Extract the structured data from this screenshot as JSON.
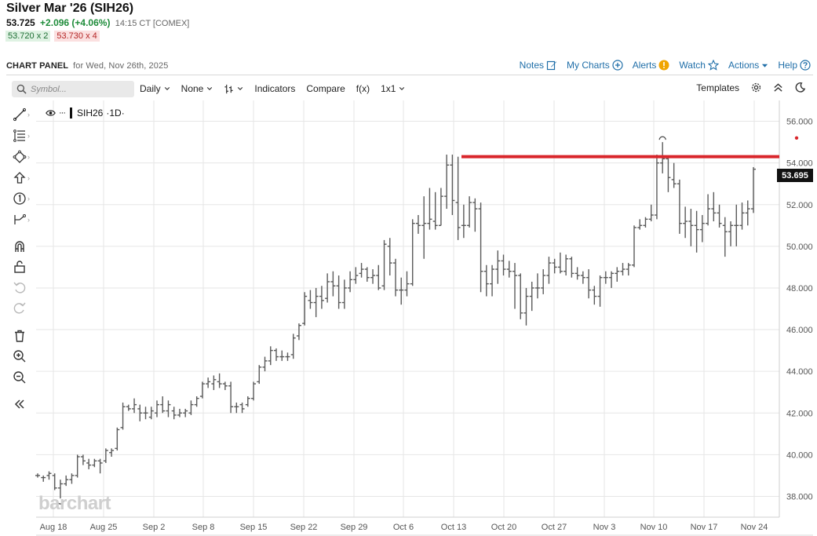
{
  "quote": {
    "title": "Silver Mar '26 (SIH26)",
    "last": "53.725",
    "change": "+2.096 (+4.06%)",
    "time": "14:15 CT [COMEX]",
    "bid": "53.720 x 2",
    "ask": "53.730 x 4"
  },
  "panel": {
    "title": "CHART PANEL",
    "date": "for Wed, Nov 26th, 2025",
    "menu": {
      "notes": "Notes",
      "my_charts": "My Charts",
      "alerts": "Alerts",
      "watch": "Watch",
      "actions": "Actions",
      "help": "Help"
    }
  },
  "toolbar": {
    "search_placeholder": "Symbol...",
    "interval": "Daily",
    "overlay": "None",
    "bar_type_icon": "bar-type-icon",
    "indicators": "Indicators",
    "compare": "Compare",
    "fx": "f(x)",
    "layout": "1x1",
    "templates": "Templates"
  },
  "legend": {
    "symbol": "SIH26",
    "interval": "·1D·"
  },
  "watermark": "barchart",
  "last_price_tag": "53.695",
  "colors": {
    "accent_link": "#1f6ea8",
    "up": "#1e8c3a",
    "down": "#b42525",
    "resistance_line": "#d9262b",
    "bars": "#5a5a5a"
  },
  "chart_data": {
    "type": "ohlc",
    "symbol": "SIH26",
    "ylim": [
      37,
      57
    ],
    "yticks": [
      "38.000",
      "40.000",
      "42.000",
      "44.000",
      "46.000",
      "48.000",
      "50.000",
      "52.000",
      "54.000",
      "56.000"
    ],
    "xticks": [
      "Aug 18",
      "Aug 25",
      "Sep 2",
      "Sep 8",
      "Sep 15",
      "Sep 22",
      "Sep 29",
      "Oct 6",
      "Oct 13",
      "Oct 20",
      "Oct 27",
      "Nov 3",
      "Nov 10",
      "Nov 17",
      "Nov 24"
    ],
    "resistance_line": 54.3,
    "last_price": 53.695,
    "grid": true,
    "bars": [
      {
        "o": 39.0,
        "h": 39.1,
        "l": 38.9,
        "c": 39.0
      },
      {
        "o": 38.9,
        "h": 39.0,
        "l": 38.7,
        "c": 38.9
      },
      {
        "o": 39.0,
        "h": 39.2,
        "l": 38.8,
        "c": 39.1
      },
      {
        "o": 39.0,
        "h": 39.1,
        "l": 38.3,
        "c": 38.4
      },
      {
        "o": 38.4,
        "h": 38.8,
        "l": 37.9,
        "c": 38.6
      },
      {
        "o": 38.6,
        "h": 39.0,
        "l": 38.5,
        "c": 38.8
      },
      {
        "o": 38.8,
        "h": 39.1,
        "l": 38.6,
        "c": 39.0
      },
      {
        "o": 39.0,
        "h": 40.0,
        "l": 38.9,
        "c": 39.9
      },
      {
        "o": 39.9,
        "h": 40.0,
        "l": 39.5,
        "c": 39.7
      },
      {
        "o": 39.6,
        "h": 39.8,
        "l": 39.3,
        "c": 39.5
      },
      {
        "o": 39.5,
        "h": 39.8,
        "l": 39.4,
        "c": 39.7
      },
      {
        "o": 39.7,
        "h": 39.8,
        "l": 39.1,
        "c": 39.6
      },
      {
        "o": 39.7,
        "h": 40.3,
        "l": 39.6,
        "c": 40.2
      },
      {
        "o": 40.1,
        "h": 40.3,
        "l": 39.9,
        "c": 40.2
      },
      {
        "o": 40.3,
        "h": 41.3,
        "l": 40.2,
        "c": 41.2
      },
      {
        "o": 41.3,
        "h": 42.5,
        "l": 41.2,
        "c": 42.3
      },
      {
        "o": 42.3,
        "h": 42.4,
        "l": 42.1,
        "c": 42.2
      },
      {
        "o": 42.2,
        "h": 42.7,
        "l": 42.0,
        "c": 42.4
      },
      {
        "o": 42.2,
        "h": 42.4,
        "l": 41.6,
        "c": 42.0
      },
      {
        "o": 42.0,
        "h": 42.3,
        "l": 41.7,
        "c": 42.0
      },
      {
        "o": 41.8,
        "h": 42.3,
        "l": 41.7,
        "c": 42.1
      },
      {
        "o": 42.0,
        "h": 42.6,
        "l": 41.8,
        "c": 42.4
      },
      {
        "o": 42.4,
        "h": 42.8,
        "l": 42.0,
        "c": 42.1
      },
      {
        "o": 42.1,
        "h": 42.6,
        "l": 41.8,
        "c": 42.4
      },
      {
        "o": 42.1,
        "h": 42.3,
        "l": 41.7,
        "c": 41.9
      },
      {
        "o": 41.9,
        "h": 42.2,
        "l": 41.8,
        "c": 42.0
      },
      {
        "o": 42.0,
        "h": 42.2,
        "l": 41.8,
        "c": 42.1
      },
      {
        "o": 42.0,
        "h": 42.6,
        "l": 41.9,
        "c": 42.4
      },
      {
        "o": 42.4,
        "h": 42.8,
        "l": 42.3,
        "c": 42.7
      },
      {
        "o": 42.8,
        "h": 43.5,
        "l": 42.7,
        "c": 43.4
      },
      {
        "o": 43.4,
        "h": 43.7,
        "l": 43.2,
        "c": 43.5
      },
      {
        "o": 43.4,
        "h": 43.8,
        "l": 43.1,
        "c": 43.6
      },
      {
        "o": 43.5,
        "h": 43.9,
        "l": 43.2,
        "c": 43.4
      },
      {
        "o": 43.4,
        "h": 43.5,
        "l": 43.1,
        "c": 43.3
      },
      {
        "o": 43.3,
        "h": 43.5,
        "l": 42.0,
        "c": 42.3
      },
      {
        "o": 42.3,
        "h": 42.5,
        "l": 42.0,
        "c": 42.3
      },
      {
        "o": 42.4,
        "h": 42.5,
        "l": 42.0,
        "c": 42.2
      },
      {
        "o": 42.4,
        "h": 42.8,
        "l": 42.3,
        "c": 42.7
      },
      {
        "o": 42.7,
        "h": 43.5,
        "l": 42.6,
        "c": 43.4
      },
      {
        "o": 43.5,
        "h": 44.3,
        "l": 43.4,
        "c": 44.2
      },
      {
        "o": 44.2,
        "h": 44.7,
        "l": 44.0,
        "c": 44.5
      },
      {
        "o": 44.5,
        "h": 45.2,
        "l": 44.3,
        "c": 45.0
      },
      {
        "o": 45.0,
        "h": 45.1,
        "l": 44.5,
        "c": 44.7
      },
      {
        "o": 44.7,
        "h": 45.0,
        "l": 44.5,
        "c": 44.7
      },
      {
        "o": 44.7,
        "h": 44.9,
        "l": 44.5,
        "c": 44.7
      },
      {
        "o": 44.8,
        "h": 45.8,
        "l": 44.6,
        "c": 45.6
      },
      {
        "o": 45.7,
        "h": 46.3,
        "l": 45.5,
        "c": 46.2
      },
      {
        "o": 46.3,
        "h": 47.8,
        "l": 46.2,
        "c": 47.6
      },
      {
        "o": 47.4,
        "h": 47.9,
        "l": 47.0,
        "c": 47.3
      },
      {
        "o": 47.3,
        "h": 48.0,
        "l": 46.6,
        "c": 47.6
      },
      {
        "o": 47.6,
        "h": 48.1,
        "l": 47.0,
        "c": 47.4
      },
      {
        "o": 47.5,
        "h": 48.7,
        "l": 47.3,
        "c": 48.3
      },
      {
        "o": 48.3,
        "h": 48.8,
        "l": 47.6,
        "c": 48.1
      },
      {
        "o": 48.1,
        "h": 48.6,
        "l": 47.0,
        "c": 47.3
      },
      {
        "o": 47.3,
        "h": 48.4,
        "l": 47.0,
        "c": 48.0
      },
      {
        "o": 48.0,
        "h": 48.8,
        "l": 47.8,
        "c": 48.4
      },
      {
        "o": 48.4,
        "h": 49.0,
        "l": 48.2,
        "c": 48.6
      },
      {
        "o": 48.7,
        "h": 49.2,
        "l": 48.5,
        "c": 48.9
      },
      {
        "o": 48.9,
        "h": 49.0,
        "l": 48.3,
        "c": 48.5
      },
      {
        "o": 48.5,
        "h": 48.9,
        "l": 48.2,
        "c": 48.6
      },
      {
        "o": 48.6,
        "h": 49.1,
        "l": 47.9,
        "c": 48.0
      },
      {
        "o": 48.1,
        "h": 50.3,
        "l": 47.9,
        "c": 50.1
      },
      {
        "o": 50.0,
        "h": 50.4,
        "l": 48.6,
        "c": 49.2
      },
      {
        "o": 49.2,
        "h": 49.4,
        "l": 47.6,
        "c": 47.9
      },
      {
        "o": 47.9,
        "h": 48.5,
        "l": 47.2,
        "c": 47.9
      },
      {
        "o": 47.9,
        "h": 48.8,
        "l": 47.6,
        "c": 48.2
      },
      {
        "o": 48.2,
        "h": 51.3,
        "l": 48.1,
        "c": 51.1
      },
      {
        "o": 51.1,
        "h": 51.5,
        "l": 50.6,
        "c": 51.0
      },
      {
        "o": 51.0,
        "h": 52.4,
        "l": 49.4,
        "c": 51.1
      },
      {
        "o": 51.1,
        "h": 52.8,
        "l": 50.8,
        "c": 51.3
      },
      {
        "o": 51.2,
        "h": 52.6,
        "l": 50.8,
        "c": 51.0
      },
      {
        "o": 51.0,
        "h": 52.8,
        "l": 51.0,
        "c": 52.4
      },
      {
        "o": 52.4,
        "h": 54.4,
        "l": 51.8,
        "c": 53.9
      },
      {
        "o": 53.9,
        "h": 54.4,
        "l": 51.5,
        "c": 52.2
      },
      {
        "o": 52.1,
        "h": 54.3,
        "l": 50.3,
        "c": 50.9
      },
      {
        "o": 51.0,
        "h": 52.0,
        "l": 50.4,
        "c": 51.0
      },
      {
        "o": 51.0,
        "h": 52.4,
        "l": 50.9,
        "c": 52.1
      },
      {
        "o": 52.1,
        "h": 52.3,
        "l": 50.7,
        "c": 51.8
      },
      {
        "o": 51.8,
        "h": 52.1,
        "l": 47.8,
        "c": 48.8
      },
      {
        "o": 48.8,
        "h": 49.1,
        "l": 47.6,
        "c": 48.2
      },
      {
        "o": 48.2,
        "h": 49.1,
        "l": 47.6,
        "c": 48.9
      },
      {
        "o": 48.9,
        "h": 49.8,
        "l": 48.2,
        "c": 49.3
      },
      {
        "o": 49.3,
        "h": 49.6,
        "l": 48.6,
        "c": 48.9
      },
      {
        "o": 48.9,
        "h": 49.3,
        "l": 48.5,
        "c": 48.8
      },
      {
        "o": 48.8,
        "h": 49.2,
        "l": 47.0,
        "c": 48.6
      },
      {
        "o": 48.6,
        "h": 48.7,
        "l": 46.5,
        "c": 46.8
      },
      {
        "o": 46.8,
        "h": 48.0,
        "l": 46.2,
        "c": 47.6
      },
      {
        "o": 47.6,
        "h": 48.3,
        "l": 46.9,
        "c": 48.0
      },
      {
        "o": 48.0,
        "h": 48.7,
        "l": 47.5,
        "c": 48.0
      },
      {
        "o": 48.0,
        "h": 48.9,
        "l": 47.7,
        "c": 48.6
      },
      {
        "o": 48.6,
        "h": 49.5,
        "l": 48.2,
        "c": 49.2
      },
      {
        "o": 49.2,
        "h": 49.4,
        "l": 48.7,
        "c": 49.0
      },
      {
        "o": 49.0,
        "h": 49.7,
        "l": 48.7,
        "c": 48.8
      },
      {
        "o": 48.8,
        "h": 49.6,
        "l": 48.6,
        "c": 49.4
      },
      {
        "o": 49.4,
        "h": 49.5,
        "l": 48.5,
        "c": 48.7
      },
      {
        "o": 48.7,
        "h": 49.0,
        "l": 48.4,
        "c": 48.6
      },
      {
        "o": 48.6,
        "h": 48.8,
        "l": 48.2,
        "c": 48.5
      },
      {
        "o": 48.5,
        "h": 48.9,
        "l": 47.5,
        "c": 47.9
      },
      {
        "o": 47.9,
        "h": 48.1,
        "l": 47.2,
        "c": 47.6
      },
      {
        "o": 47.6,
        "h": 48.6,
        "l": 47.1,
        "c": 48.5
      },
      {
        "o": 48.5,
        "h": 48.8,
        "l": 48.2,
        "c": 48.5
      },
      {
        "o": 48.5,
        "h": 48.8,
        "l": 48.0,
        "c": 48.7
      },
      {
        "o": 48.7,
        "h": 49.0,
        "l": 48.3,
        "c": 48.8
      },
      {
        "o": 48.8,
        "h": 49.2,
        "l": 48.6,
        "c": 48.9
      },
      {
        "o": 48.9,
        "h": 49.2,
        "l": 48.6,
        "c": 49.1
      },
      {
        "o": 49.1,
        "h": 51.0,
        "l": 49.0,
        "c": 50.9
      },
      {
        "o": 50.9,
        "h": 51.3,
        "l": 50.8,
        "c": 51.0
      },
      {
        "o": 51.0,
        "h": 51.4,
        "l": 50.9,
        "c": 51.3
      },
      {
        "o": 51.3,
        "h": 52.0,
        "l": 51.2,
        "c": 51.5
      },
      {
        "o": 51.5,
        "h": 54.4,
        "l": 51.3,
        "c": 54.0
      },
      {
        "o": 54.0,
        "h": 55.0,
        "l": 53.5,
        "c": 54.2
      },
      {
        "o": 54.2,
        "h": 54.3,
        "l": 52.6,
        "c": 53.3
      },
      {
        "o": 53.2,
        "h": 54.0,
        "l": 52.8,
        "c": 53.0
      },
      {
        "o": 53.0,
        "h": 53.2,
        "l": 50.6,
        "c": 51.1
      },
      {
        "o": 51.1,
        "h": 51.9,
        "l": 50.4,
        "c": 51.2
      },
      {
        "o": 51.2,
        "h": 51.8,
        "l": 50.0,
        "c": 51.0
      },
      {
        "o": 51.0,
        "h": 51.7,
        "l": 49.7,
        "c": 50.8
      },
      {
        "o": 50.8,
        "h": 51.5,
        "l": 50.2,
        "c": 51.1
      },
      {
        "o": 51.1,
        "h": 52.5,
        "l": 51.0,
        "c": 51.8
      },
      {
        "o": 51.8,
        "h": 52.6,
        "l": 51.2,
        "c": 51.6
      },
      {
        "o": 51.6,
        "h": 52.0,
        "l": 50.9,
        "c": 51.1
      },
      {
        "o": 51.0,
        "h": 51.4,
        "l": 49.5,
        "c": 50.7
      },
      {
        "o": 50.7,
        "h": 51.2,
        "l": 50.0,
        "c": 51.0
      },
      {
        "o": 51.0,
        "h": 52.0,
        "l": 50.0,
        "c": 51.0
      },
      {
        "o": 51.0,
        "h": 52.1,
        "l": 50.8,
        "c": 51.6
      },
      {
        "o": 51.6,
        "h": 52.2,
        "l": 51.0,
        "c": 51.8
      },
      {
        "o": 51.8,
        "h": 53.8,
        "l": 51.6,
        "c": 53.7
      }
    ]
  }
}
